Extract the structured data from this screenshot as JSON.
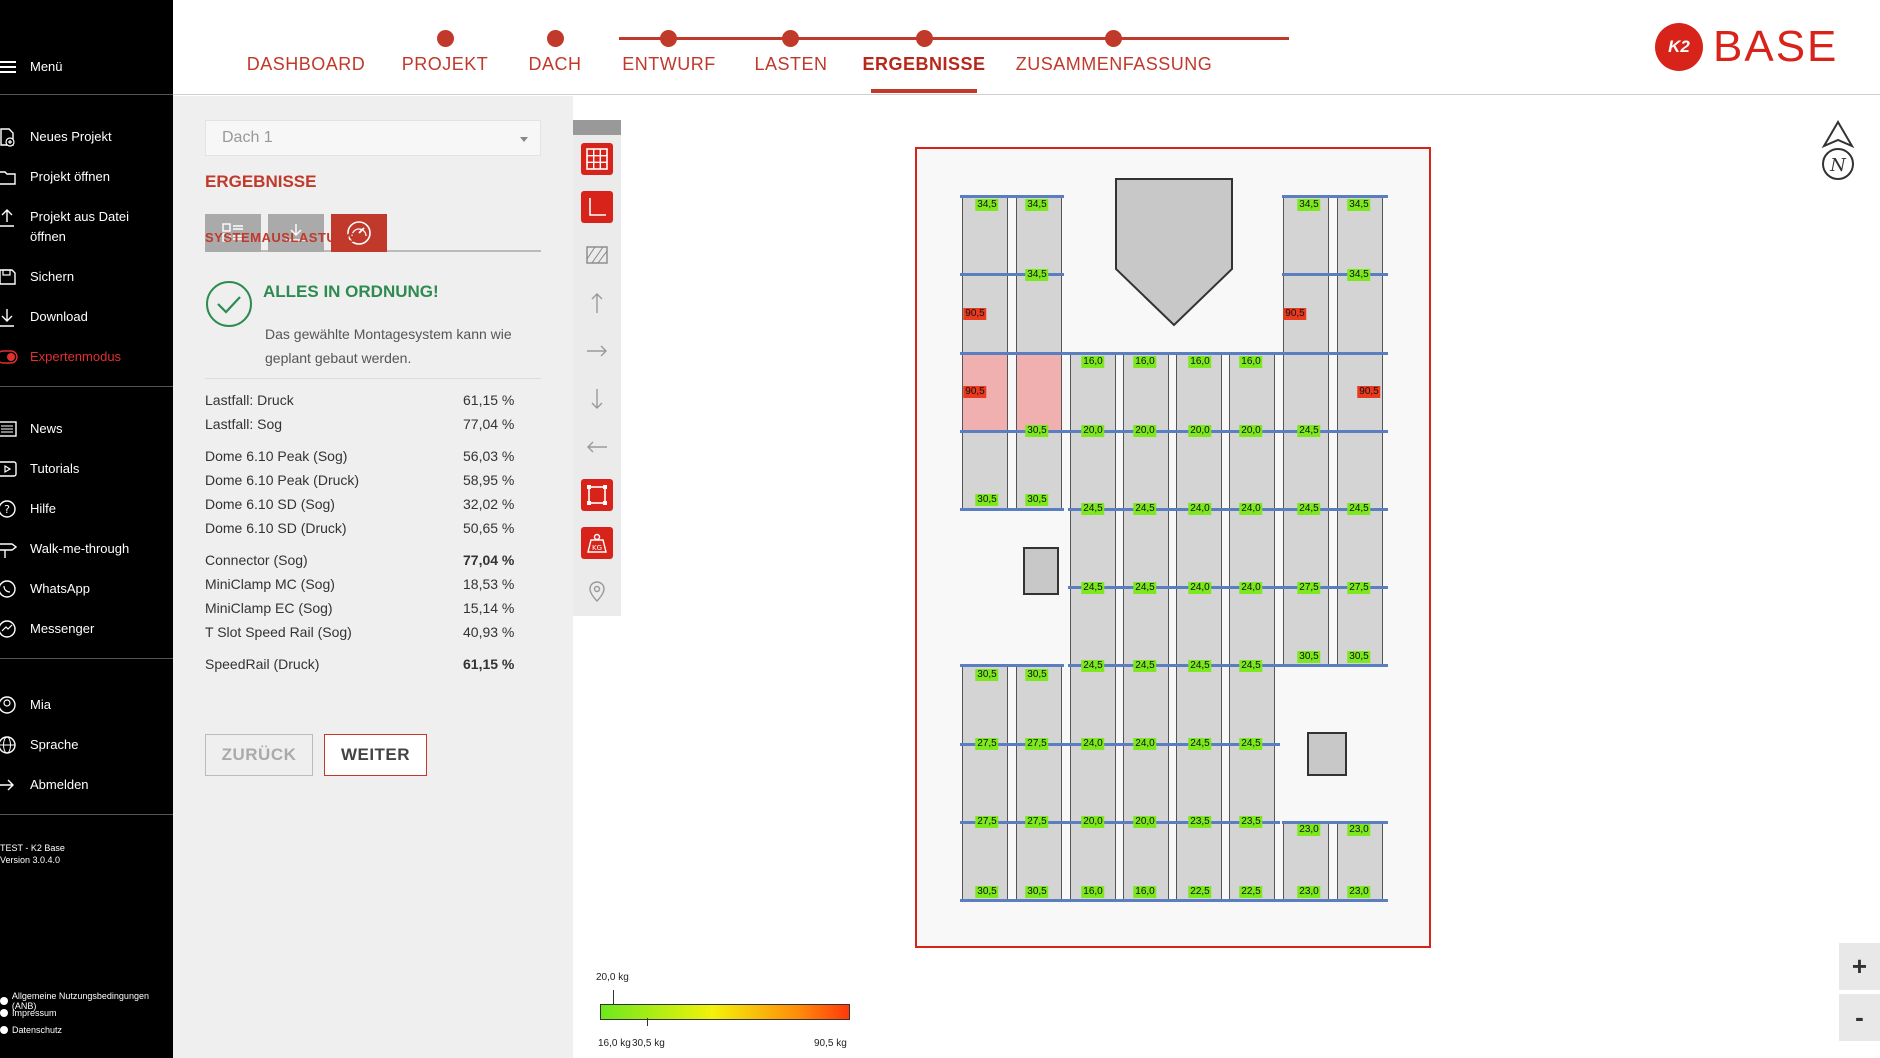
{
  "sidebar": {
    "menu_label": "Menü",
    "group1": [
      "Neues Projekt",
      "Projekt öffnen",
      "Projekt aus Datei öffnen",
      "Sichern",
      "Download",
      "Expertenmodus"
    ],
    "group2": [
      "News",
      "Tutorials",
      "Hilfe",
      "Walk-me-through",
      "WhatsApp",
      "Messenger"
    ],
    "group3": [
      "Mia",
      "Sprache",
      "Abmelden"
    ],
    "version_line1": "TEST - K2 Base",
    "version_line2": "Version 3.0.4.0",
    "footer": [
      "Allgemeine Nutzungsbedingungen (ANB)",
      "Impressum",
      "Datenschutz"
    ]
  },
  "steps": [
    "DASHBOARD",
    "PROJEKT",
    "DACH",
    "ENTWURF",
    "LASTEN",
    "ERGEBNISSE",
    "ZUSAMMENFASSUNG"
  ],
  "active_step": "ERGEBNISSE",
  "logo": {
    "mark": "K2",
    "text": "BASE",
    "color": "#d8231b"
  },
  "panel": {
    "roof_select": "Dach 1",
    "title": "ERGEBNISSE",
    "subtitle": "SYSTEMAUSLASTUNG",
    "status_title": "ALLES IN ORDNUNG!",
    "status_text": "Das gewählte Montagesystem kann wie geplant gebaut werden.",
    "results": [
      {
        "label": "Lastfall: Druck",
        "value": "61,15 %",
        "bold": false
      },
      {
        "label": "Lastfall: Sog",
        "value": "77,04 %",
        "bold": false
      },
      {
        "label": "Dome 6.10 Peak (Sog)",
        "value": "56,03 %",
        "bold": false
      },
      {
        "label": "Dome 6.10 Peak (Druck)",
        "value": "58,95 %",
        "bold": false
      },
      {
        "label": "Dome 6.10 SD (Sog)",
        "value": "32,02 %",
        "bold": false
      },
      {
        "label": "Dome 6.10 SD (Druck)",
        "value": "50,65 %",
        "bold": false
      },
      {
        "label": "Connector (Sog)",
        "value": "77,04 %",
        "bold": true
      },
      {
        "label": "MiniClamp MC (Sog)",
        "value": "18,53 %",
        "bold": false
      },
      {
        "label": "MiniClamp EC (Sog)",
        "value": "15,14 %",
        "bold": false
      },
      {
        "label": "T Slot Speed Rail (Sog)",
        "value": "40,93 %",
        "bold": false
      },
      {
        "label": "SpeedRail (Druck)",
        "value": "61,15 %",
        "bold": true
      }
    ],
    "back_label": "ZURÜCK",
    "next_label": "WEITER"
  },
  "legend": {
    "marker_label": "20,0 kg",
    "min_label": "16,0 kg",
    "mid_label": "30,5 kg",
    "max_label": "90,5 kg"
  },
  "zoom": {
    "in": "+",
    "out": "-"
  },
  "load_tags": [
    [
      "34,5",
      "g"
    ],
    [
      "34,5",
      "g"
    ],
    [
      "34,5",
      "g"
    ],
    [
      "34,5",
      "g"
    ],
    [
      "34,5",
      "g"
    ],
    [
      "34,5",
      "g"
    ],
    [
      "90,5",
      "r"
    ],
    [
      "90,5",
      "r"
    ],
    [
      "16,0",
      "g"
    ],
    [
      "16,0",
      "g"
    ],
    [
      "16,0",
      "g"
    ],
    [
      "16,0",
      "g"
    ],
    [
      "90,5",
      "r"
    ],
    [
      "90,5",
      "r"
    ],
    [
      "30,5",
      "g"
    ],
    [
      "20,0",
      "g"
    ],
    [
      "20,0",
      "g"
    ],
    [
      "20,0",
      "g"
    ],
    [
      "20,0",
      "g"
    ],
    [
      "24,5",
      "g"
    ],
    [
      "30,5",
      "g"
    ],
    [
      "30,5",
      "g"
    ],
    [
      "24,5",
      "g"
    ],
    [
      "24,5",
      "g"
    ],
    [
      "24,0",
      "g"
    ],
    [
      "24,0",
      "g"
    ],
    [
      "24,5",
      "g"
    ],
    [
      "24,5",
      "g"
    ],
    [
      "24,5",
      "g"
    ],
    [
      "24,5",
      "g"
    ],
    [
      "24,0",
      "g"
    ],
    [
      "24,0",
      "g"
    ],
    [
      "27,5",
      "g"
    ],
    [
      "27,5",
      "g"
    ],
    [
      "30,5",
      "g"
    ],
    [
      "30,5",
      "g"
    ],
    [
      "30,5",
      "g"
    ],
    [
      "30,5",
      "g"
    ],
    [
      "24,5",
      "g"
    ],
    [
      "24,5",
      "g"
    ],
    [
      "24,5",
      "g"
    ],
    [
      "24,5",
      "g"
    ],
    [
      "27,5",
      "g"
    ],
    [
      "27,5",
      "g"
    ],
    [
      "24,0",
      "g"
    ],
    [
      "24,0",
      "g"
    ],
    [
      "24,5",
      "g"
    ],
    [
      "24,5",
      "g"
    ],
    [
      "27,5",
      "g"
    ],
    [
      "27,5",
      "g"
    ],
    [
      "20,0",
      "g"
    ],
    [
      "20,0",
      "g"
    ],
    [
      "23,5",
      "g"
    ],
    [
      "23,5",
      "g"
    ],
    [
      "23,0",
      "g"
    ],
    [
      "23,0",
      "g"
    ],
    [
      "30,5",
      "g"
    ],
    [
      "30,5",
      "g"
    ],
    [
      "16,0",
      "g"
    ],
    [
      "16,0",
      "g"
    ],
    [
      "22,5",
      "g"
    ],
    [
      "22,5",
      "g"
    ],
    [
      "23,0",
      "g"
    ],
    [
      "23,0",
      "g"
    ]
  ]
}
